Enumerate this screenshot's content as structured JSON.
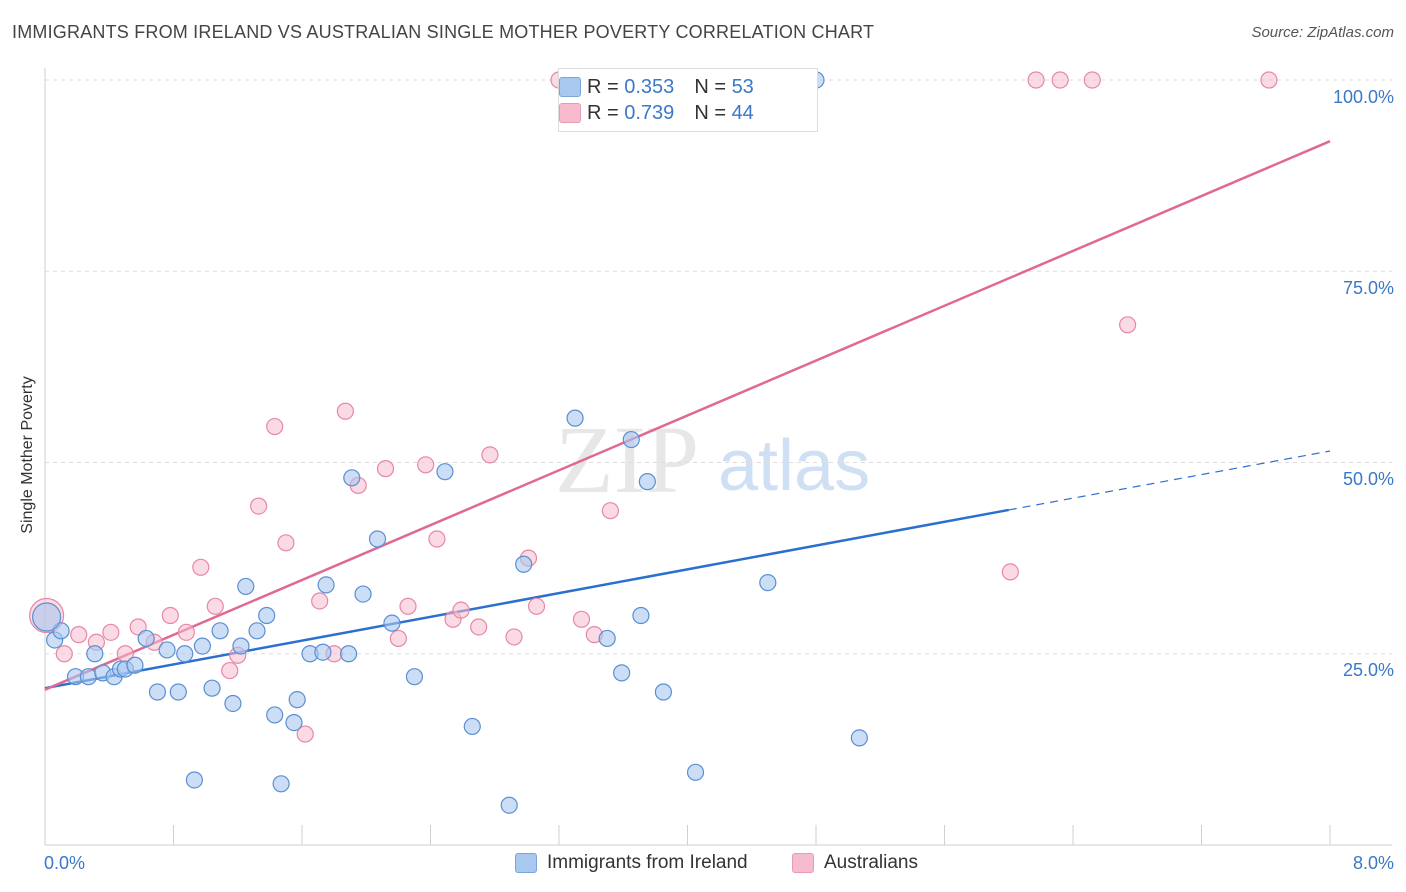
{
  "header": {
    "title": "IMMIGRANTS FROM IRELAND VS AUSTRALIAN SINGLE MOTHER POVERTY CORRELATION CHART",
    "source": "Source: ZipAtlas.com"
  },
  "watermark": {
    "zip": "ZIP",
    "atlas": "atlas"
  },
  "legend": {
    "r_label": "R =",
    "n_label": "N =",
    "entries": [
      {
        "r": "0.353",
        "n": "53",
        "color": "#a9c8f0"
      },
      {
        "r": "0.739",
        "n": "44",
        "color": "#f6bccd"
      }
    ]
  },
  "bottom_legend": {
    "items": [
      {
        "label": "Immigrants from Ireland",
        "color": "#a9c8f0"
      },
      {
        "label": "Australians",
        "color": "#f6bccd"
      }
    ]
  },
  "colors": {
    "blue_point_fill": "#a9c8f0",
    "blue_point_stroke": "#5b8fd1",
    "blue_line": "#2b6fcf",
    "pink_point_fill": "#f6bccd",
    "pink_point_stroke": "#e887a6",
    "pink_line": "#e06894",
    "tick_label": "#3a78c9",
    "grid": "#dddddd"
  },
  "chart_data": {
    "type": "scatter",
    "title": "IMMIGRANTS FROM IRELAND VS AUSTRALIAN SINGLE MOTHER POVERTY CORRELATION CHART",
    "xlabel": "",
    "ylabel": "Single Mother Poverty",
    "xlim": [
      0,
      8
    ],
    "ylim": [
      0,
      100
    ],
    "x_tick_labels": [
      "0.0%",
      "8.0%"
    ],
    "y_tick_labels": [
      "25.0%",
      "50.0%",
      "75.0%",
      "100.0%"
    ],
    "y_ticks": [
      25,
      50,
      75,
      100
    ],
    "grid": true,
    "legend_position": "top-center",
    "series": [
      {
        "name": "Immigrants from Ireland",
        "r": 0.353,
        "n": 53,
        "trend": {
          "x": [
            0,
            6.0,
            8.0
          ],
          "y": [
            20.5,
            43.8,
            51.5
          ],
          "solid_until": 6.0
        },
        "points": [
          [
            0.06,
            26.8
          ],
          [
            0.1,
            28.0
          ],
          [
            0.19,
            22.0
          ],
          [
            0.27,
            22.0
          ],
          [
            0.31,
            25.0
          ],
          [
            0.36,
            22.5
          ],
          [
            0.43,
            22.0
          ],
          [
            0.47,
            23.0
          ],
          [
            0.5,
            23.0
          ],
          [
            0.56,
            23.5
          ],
          [
            0.63,
            27.0
          ],
          [
            0.7,
            20.0
          ],
          [
            0.76,
            25.5
          ],
          [
            0.83,
            20.0
          ],
          [
            0.87,
            25.0
          ],
          [
            0.93,
            8.5
          ],
          [
            0.98,
            26.0
          ],
          [
            1.04,
            20.5
          ],
          [
            1.09,
            28.0
          ],
          [
            1.17,
            18.5
          ],
          [
            1.22,
            26.0
          ],
          [
            1.25,
            33.8
          ],
          [
            1.32,
            28.0
          ],
          [
            1.38,
            30.0
          ],
          [
            1.43,
            17.0
          ],
          [
            1.47,
            8.0
          ],
          [
            1.55,
            16.0
          ],
          [
            1.57,
            19.0
          ],
          [
            1.65,
            25.0
          ],
          [
            1.73,
            25.2
          ],
          [
            1.75,
            34.0
          ],
          [
            1.89,
            25.0
          ],
          [
            1.91,
            48.0
          ],
          [
            1.98,
            32.8
          ],
          [
            2.07,
            40.0
          ],
          [
            2.16,
            29.0
          ],
          [
            2.3,
            22.0
          ],
          [
            2.49,
            48.8
          ],
          [
            2.66,
            15.5
          ],
          [
            2.89,
            5.2
          ],
          [
            2.98,
            36.7
          ],
          [
            3.3,
            55.8
          ],
          [
            3.5,
            27.0
          ],
          [
            3.59,
            22.5
          ],
          [
            3.65,
            53.0
          ],
          [
            3.71,
            30.0
          ],
          [
            3.75,
            47.5
          ],
          [
            3.85,
            20.0
          ],
          [
            4.05,
            9.5
          ],
          [
            4.5,
            34.3
          ],
          [
            4.8,
            100.0
          ],
          [
            5.07,
            14.0
          ],
          [
            0.01,
            29.8
          ]
        ]
      },
      {
        "name": "Australians",
        "r": 0.739,
        "n": 44,
        "trend": {
          "x": [
            0,
            8.0
          ],
          "y": [
            20.3,
            92.0
          ]
        },
        "points": [
          [
            0.01,
            30.0
          ],
          [
            0.12,
            25.0
          ],
          [
            0.21,
            27.5
          ],
          [
            0.32,
            26.5
          ],
          [
            0.41,
            27.8
          ],
          [
            0.5,
            25.0
          ],
          [
            0.58,
            28.5
          ],
          [
            0.68,
            26.5
          ],
          [
            0.78,
            30.0
          ],
          [
            0.88,
            27.8
          ],
          [
            0.97,
            36.3
          ],
          [
            1.06,
            31.2
          ],
          [
            1.15,
            22.8
          ],
          [
            1.2,
            24.8
          ],
          [
            1.33,
            44.3
          ],
          [
            1.43,
            54.7
          ],
          [
            1.5,
            39.5
          ],
          [
            1.62,
            14.5
          ],
          [
            1.71,
            31.9
          ],
          [
            1.8,
            25.0
          ],
          [
            1.87,
            56.7
          ],
          [
            1.95,
            47.0
          ],
          [
            2.12,
            49.2
          ],
          [
            2.2,
            27.0
          ],
          [
            2.26,
            31.2
          ],
          [
            2.37,
            49.7
          ],
          [
            2.44,
            40.0
          ],
          [
            2.54,
            29.5
          ],
          [
            2.59,
            30.7
          ],
          [
            2.7,
            28.5
          ],
          [
            2.77,
            51.0
          ],
          [
            2.92,
            27.2
          ],
          [
            3.01,
            37.5
          ],
          [
            3.06,
            31.2
          ],
          [
            3.2,
            100.0
          ],
          [
            3.34,
            29.5
          ],
          [
            3.42,
            27.5
          ],
          [
            3.52,
            43.7
          ],
          [
            6.01,
            35.7
          ],
          [
            6.17,
            100.0
          ],
          [
            6.32,
            100.0
          ],
          [
            6.52,
            100.0
          ],
          [
            6.74,
            68.0
          ],
          [
            7.62,
            100.0
          ]
        ]
      }
    ]
  }
}
